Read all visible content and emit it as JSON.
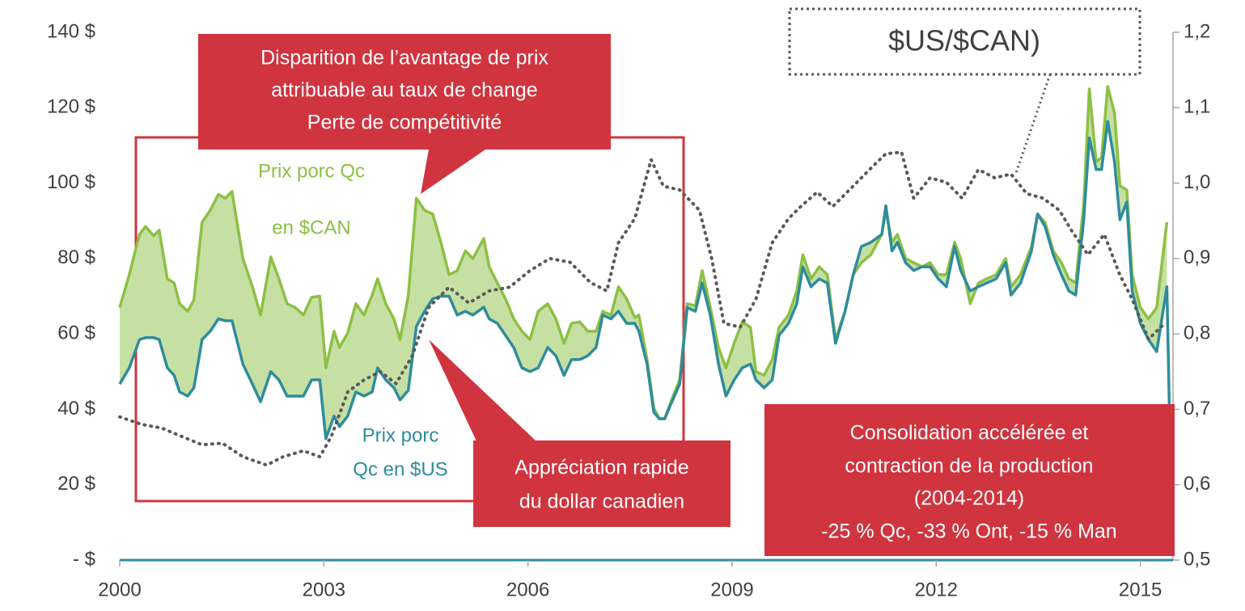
{
  "chart_data": {
    "type": "line",
    "xlim": [
      2000,
      2015.48
    ],
    "xticks": [
      2000,
      2003,
      2006,
      2009,
      2012,
      2015
    ],
    "ylim": [
      0,
      140
    ],
    "yticks": [
      {
        "value": 0,
        "label": "- $"
      },
      {
        "value": 20,
        "label": "20 $"
      },
      {
        "value": 40,
        "label": "40 $"
      },
      {
        "value": 60,
        "label": "60 $"
      },
      {
        "value": 80,
        "label": "80 $"
      },
      {
        "value": 100,
        "label": "100 $"
      },
      {
        "value": 120,
        "label": "120 $"
      },
      {
        "value": 140,
        "label": "140 $"
      }
    ],
    "y2lim": [
      0.5,
      1.2
    ],
    "y2ticks": [
      {
        "value": 0.5,
        "label": "0,5"
      },
      {
        "value": 0.6,
        "label": "0,6"
      },
      {
        "value": 0.7,
        "label": "0,7"
      },
      {
        "value": 0.8,
        "label": "0,8"
      },
      {
        "value": 0.9,
        "label": "0,9"
      },
      {
        "value": 1.0,
        "label": "1,0"
      },
      {
        "value": 1.1,
        "label": "1,1"
      },
      {
        "value": 1.2,
        "label": "1,2"
      }
    ],
    "x": [
      2000.0,
      2000.14,
      2000.29,
      2000.38,
      2000.5,
      2000.58,
      2000.7,
      2000.8,
      2000.88,
      2001.0,
      2001.09,
      2001.21,
      2001.33,
      2001.45,
      2001.55,
      2001.65,
      2001.81,
      2001.95,
      2002.07,
      2002.22,
      2002.34,
      2002.46,
      2002.58,
      2002.7,
      2002.82,
      2002.94,
      2003.03,
      2003.15,
      2003.23,
      2003.35,
      2003.47,
      2003.59,
      2003.71,
      2003.79,
      2003.91,
      2004.03,
      2004.12,
      2004.24,
      2004.36,
      2004.48,
      2004.6,
      2004.72,
      2004.84,
      2004.96,
      2005.08,
      2005.19,
      2005.35,
      2005.43,
      2005.55,
      2005.67,
      2005.79,
      2005.91,
      2006.03,
      2006.15,
      2006.29,
      2006.41,
      2006.53,
      2006.64,
      2006.76,
      2006.88,
      2007.0,
      2007.1,
      2007.22,
      2007.33,
      2007.45,
      2007.57,
      2007.63,
      2007.75,
      2007.85,
      2007.93,
      2008.01,
      2008.11,
      2008.23,
      2008.34,
      2008.46,
      2008.56,
      2008.68,
      2008.8,
      2008.91,
      2009.03,
      2009.15,
      2009.27,
      2009.35,
      2009.47,
      2009.59,
      2009.69,
      2009.83,
      2009.95,
      2010.04,
      2010.16,
      2010.28,
      2010.4,
      2010.52,
      2010.66,
      2010.78,
      2010.9,
      2011.04,
      2011.2,
      2011.26,
      2011.35,
      2011.43,
      2011.55,
      2011.67,
      2011.79,
      2011.91,
      2012.03,
      2012.15,
      2012.27,
      2012.36,
      2012.5,
      2012.62,
      2012.74,
      2012.88,
      2013.02,
      2013.1,
      2013.24,
      2013.4,
      2013.49,
      2013.6,
      2013.72,
      2013.84,
      2013.95,
      2014.05,
      2014.17,
      2014.25,
      2014.35,
      2014.43,
      2014.52,
      2014.62,
      2014.7,
      2014.8,
      2014.88,
      2015.0,
      2015.12,
      2015.24,
      2015.39,
      2015.43
    ],
    "fill_between": {
      "color": "#c6e0a4",
      "series": [
        0,
        1
      ]
    },
    "series": [
      {
        "name_lines": [
          "Prix porc Qc",
          "en $CAN"
        ],
        "color": "#8cc044",
        "values": [
          67,
          75.7,
          86.4,
          88.5,
          86,
          87.5,
          74.6,
          73.5,
          68,
          66,
          69,
          89.6,
          92.8,
          97,
          96,
          97.8,
          80,
          72.5,
          65,
          80.4,
          74.6,
          68,
          67,
          65,
          69.7,
          70,
          51,
          60.7,
          56.4,
          60.2,
          68,
          65,
          70.3,
          74.6,
          68,
          64,
          58.5,
          70,
          96,
          92.8,
          91.8,
          84.3,
          75.7,
          76.8,
          82,
          80,
          85.3,
          77.8,
          73.5,
          69.3,
          64,
          60.7,
          58.5,
          66,
          68,
          64,
          57.5,
          62.8,
          63.2,
          60.7,
          60.7,
          66,
          65,
          72.5,
          69.3,
          64.3,
          65,
          53.2,
          40.3,
          37.5,
          37.5,
          42.5,
          47.8,
          68,
          67.5,
          76.8,
          67,
          56.4,
          51,
          57.5,
          63.2,
          61.7,
          50,
          49,
          53.2,
          61.7,
          65,
          71.4,
          81,
          74.6,
          77.8,
          75.7,
          58.5,
          66,
          75.7,
          78.9,
          81,
          86.4,
          92.8,
          84.3,
          86.4,
          80,
          78.9,
          77.8,
          78.9,
          75.7,
          75.7,
          84.3,
          80,
          68,
          73.5,
          74.6,
          75.7,
          80,
          72.5,
          75.7,
          83.2,
          91.8,
          89.6,
          82,
          78.9,
          74.6,
          73.5,
          95,
          125,
          105.7,
          106.8,
          125.6,
          118.6,
          99.3,
          98.2,
          75.7,
          67,
          64,
          67,
          89.6,
          null
        ]
      },
      {
        "name_lines": [
          "Prix porc",
          "Qc en $US"
        ],
        "color": "#2f8c9c",
        "values": [
          46.7,
          51,
          58.5,
          59,
          59,
          58.5,
          51,
          49,
          44.6,
          43.5,
          45.7,
          58.5,
          60.7,
          64,
          63.5,
          63.5,
          52,
          46.7,
          42,
          50,
          47.8,
          43.5,
          43.5,
          43.5,
          47.8,
          47.8,
          32.2,
          38.2,
          35.4,
          38.2,
          44.6,
          43.5,
          44.6,
          51,
          47.8,
          45.7,
          42.5,
          45,
          62,
          66,
          69.3,
          70,
          70,
          65,
          66,
          65,
          67.1,
          64,
          62.8,
          59.6,
          56.4,
          51,
          50,
          51,
          56.4,
          54.2,
          49,
          53.2,
          53.2,
          54.2,
          56.4,
          65,
          64,
          66,
          62.8,
          62.8,
          60.7,
          52,
          39.2,
          37.5,
          37.5,
          41.8,
          46.7,
          67,
          66,
          73.5,
          65,
          52,
          43.5,
          47.8,
          51,
          52,
          47.8,
          45.7,
          47.8,
          59.6,
          62.8,
          68,
          77.8,
          72.5,
          74.6,
          73.5,
          57.5,
          66,
          75.7,
          83.2,
          84.3,
          86.4,
          94,
          82,
          84.3,
          78.9,
          76.8,
          77.8,
          77.8,
          74.6,
          72.5,
          83.2,
          76.8,
          71.4,
          72.5,
          73.5,
          74.6,
          78.9,
          70.3,
          73.5,
          82,
          91.8,
          88.5,
          81,
          75.7,
          71.4,
          70.3,
          90.7,
          112,
          103.6,
          103.6,
          116.4,
          105.7,
          90.3,
          95,
          71.4,
          62.8,
          58.5,
          55.3,
          72.5,
          37
        ]
      },
      {
        "name": "$US/$CAN)",
        "color": "#595959",
        "axis": "y2",
        "dash": "dotted",
        "x": [
          2000.0,
          2000.32,
          2000.62,
          2000.91,
          2001.21,
          2001.51,
          2001.81,
          2002.16,
          2002.4,
          2002.7,
          2002.94,
          2003.11,
          2003.35,
          2003.59,
          2003.83,
          2004.06,
          2004.3,
          2004.54,
          2004.84,
          2005.13,
          2005.43,
          2005.73,
          2006.03,
          2006.32,
          2006.62,
          2006.92,
          2007.16,
          2007.33,
          2007.57,
          2007.81,
          2007.99,
          2008.23,
          2008.52,
          2008.7,
          2008.88,
          2009.12,
          2009.35,
          2009.59,
          2009.83,
          2010.01,
          2010.25,
          2010.48,
          2010.78,
          2011.02,
          2011.26,
          2011.49,
          2011.67,
          2011.91,
          2012.15,
          2012.38,
          2012.62,
          2012.86,
          2013.1,
          2013.33,
          2013.57,
          2013.81,
          2013.99,
          2014.23,
          2014.47,
          2014.7,
          2014.88,
          2015.12,
          2015.36
        ],
        "values": [
          0.69,
          0.68,
          0.675,
          0.664,
          0.653,
          0.655,
          0.637,
          0.626,
          0.637,
          0.645,
          0.637,
          0.664,
          0.723,
          0.739,
          0.75,
          0.734,
          0.771,
          0.835,
          0.862,
          0.841,
          0.857,
          0.862,
          0.884,
          0.9,
          0.895,
          0.868,
          0.857,
          0.921,
          0.953,
          1.031,
          0.996,
          0.991,
          0.964,
          0.9,
          0.814,
          0.809,
          0.846,
          0.921,
          0.953,
          0.969,
          0.988,
          0.969,
          0.996,
          1.018,
          1.039,
          1.041,
          0.98,
          1.007,
          1.001,
          0.98,
          1.018,
          1.007,
          1.012,
          0.986,
          0.98,
          0.964,
          0.937,
          0.905,
          0.932,
          0.878,
          0.846,
          0.793,
          0.814
        ]
      }
    ],
    "annotations": {
      "loss": [
        "Disparition de l’avantage de prix",
        "attribuable au taux de change",
        "Perte de compétitivité"
      ],
      "appreciation": [
        "Appréciation rapide",
        "du dollar canadien"
      ],
      "consolidation": [
        "Consolidation accélérée et",
        "contraction de la production",
        "(2004-2014)",
        "-25 % Qc, -33 % Ont, -15 % Man"
      ]
    }
  }
}
